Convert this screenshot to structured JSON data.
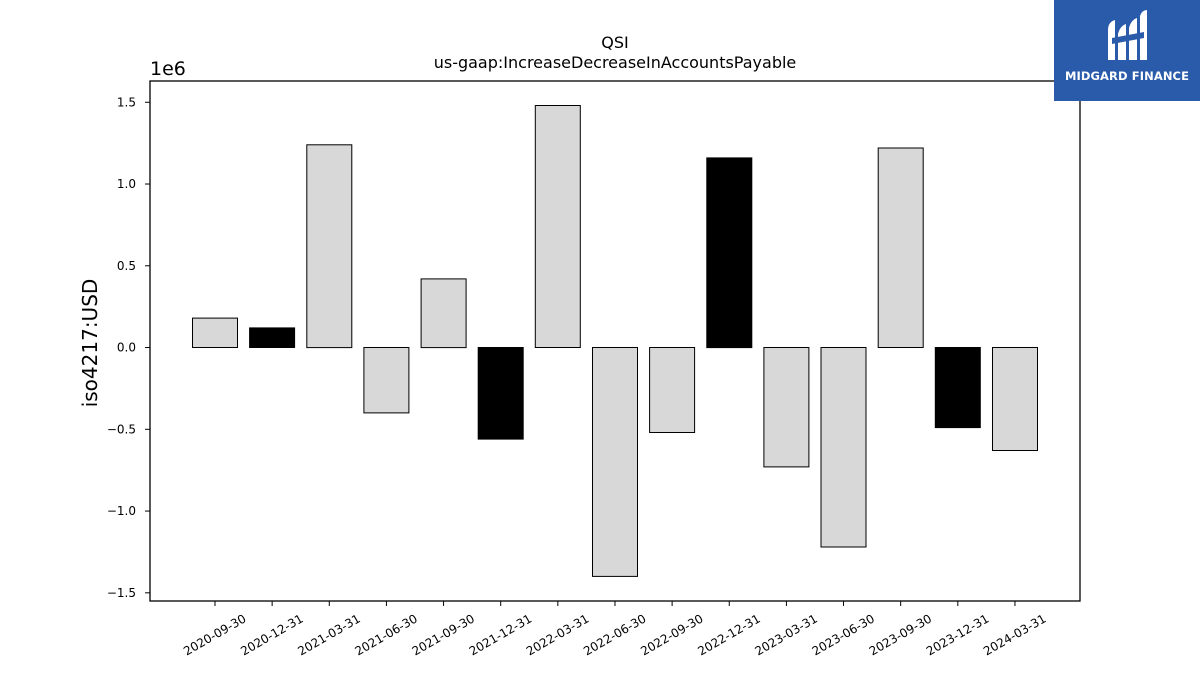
{
  "chart_data": {
    "type": "bar",
    "title": "QSI",
    "subtitle": "us-gaap:IncreaseDecreaseInAccountsPayable",
    "xlabel": "",
    "ylabel": "iso4217:USD",
    "offset_label": "1e6",
    "ylim": [
      -1550000,
      1630000
    ],
    "yticks": [
      -1500000,
      -1000000,
      -500000,
      0,
      500000,
      1000000,
      1500000
    ],
    "ytick_labels": [
      "−1.5",
      "−1.0",
      "−0.5",
      "0.0",
      "0.5",
      "1.0",
      "1.5"
    ],
    "grid": false,
    "categories": [
      "2020-09-30",
      "2020-12-31",
      "2021-03-31",
      "2021-06-30",
      "2021-09-30",
      "2021-12-31",
      "2022-03-31",
      "2022-06-30",
      "2022-09-30",
      "2022-12-31",
      "2023-03-31",
      "2023-06-30",
      "2023-09-30",
      "2023-12-31",
      "2024-03-31"
    ],
    "values": [
      180000,
      120000,
      1240000,
      -400000,
      420000,
      -560000,
      1480000,
      -1400000,
      -520000,
      1160000,
      -730000,
      -1220000,
      1220000,
      -490000,
      -630000
    ],
    "bar_colors": [
      "#d8d8d8",
      "#000000",
      "#d8d8d8",
      "#d8d8d8",
      "#d8d8d8",
      "#000000",
      "#d8d8d8",
      "#d8d8d8",
      "#d8d8d8",
      "#000000",
      "#d8d8d8",
      "#d8d8d8",
      "#d8d8d8",
      "#000000",
      "#d8d8d8"
    ],
    "edge_color": "#000000"
  },
  "logo": {
    "text": "MIDGARD FINANCE",
    "background": "#2a5aaa"
  }
}
